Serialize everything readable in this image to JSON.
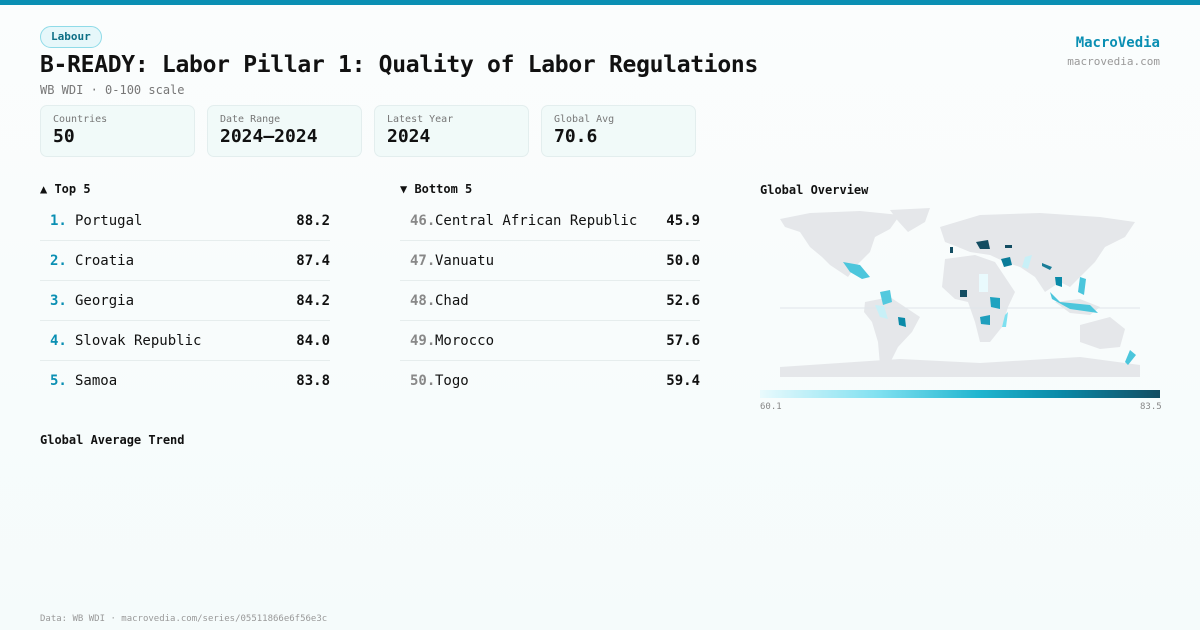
{
  "header": {
    "tag": "Labour",
    "title": "B-READY: Labor Pillar 1: Quality of Labor Regulations",
    "subtitle": "WB WDI · 0-100 scale",
    "brand": "MacroVedia",
    "brand_url": "macrovedia.com"
  },
  "stats": [
    {
      "label": "Countries",
      "value": "50"
    },
    {
      "label": "Date Range",
      "value": "2024–2024"
    },
    {
      "label": "Latest Year",
      "value": "2024"
    },
    {
      "label": "Global Avg",
      "value": "70.6"
    }
  ],
  "top5": {
    "title": "▲ Top 5",
    "items": [
      {
        "rank": "1.",
        "name": "Portugal",
        "value": "88.2"
      },
      {
        "rank": "2.",
        "name": "Croatia",
        "value": "87.4"
      },
      {
        "rank": "3.",
        "name": "Georgia",
        "value": "84.2"
      },
      {
        "rank": "4.",
        "name": "Slovak Republic",
        "value": "84.0"
      },
      {
        "rank": "5.",
        "name": "Samoa",
        "value": "83.8"
      }
    ]
  },
  "bottom5": {
    "title": "▼ Bottom 5",
    "items": [
      {
        "rank": "46.",
        "name": "Central African Republic",
        "value": "45.9"
      },
      {
        "rank": "47.",
        "name": "Vanuatu",
        "value": "50.0"
      },
      {
        "rank": "48.",
        "name": "Chad",
        "value": "52.6"
      },
      {
        "rank": "49.",
        "name": "Morocco",
        "value": "57.6"
      },
      {
        "rank": "50.",
        "name": "Togo",
        "value": "59.4"
      }
    ]
  },
  "map": {
    "title": "Global Overview",
    "legend_min": "60.1",
    "legend_max": "83.5",
    "colors": {
      "low": "#e9fafd",
      "high": "#134d62",
      "land": "#e5e7ea"
    }
  },
  "trend": {
    "title": "Global Average Trend"
  },
  "footer": "Data: WB WDI · macrovedia.com/series/05511866e6f56e3c"
}
